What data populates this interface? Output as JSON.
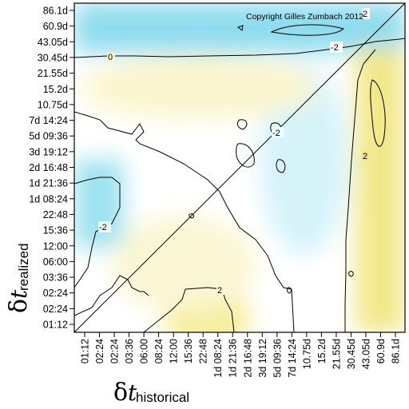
{
  "chart_data": {
    "type": "heatmap",
    "subtype": "contour",
    "title": "",
    "annotation": "Copyright Gilles Zumbach 2012",
    "xlabel": {
      "symbol": "δ",
      "variable": "t",
      "subscript": "historical"
    },
    "ylabel": {
      "symbol": "δ",
      "variable": "t",
      "subscript": "realized"
    },
    "x_ticks": [
      "01:12",
      "02:24",
      "02:24",
      "03:36",
      "06:00",
      "08:24",
      "12:00",
      "15:36",
      "22:48",
      "1d 08:24",
      "1d 21:36",
      "2d 16:48",
      "3d 19:12",
      "5d 09:36",
      "7d 14:24",
      "10.75d",
      "15.2d",
      "21.55d",
      "30.45d",
      "43.05d",
      "60.9d",
      "86.1d"
    ],
    "y_ticks": [
      "01:12",
      "02:24",
      "02:24",
      "03:36",
      "06:00",
      "12:00",
      "15:36",
      "22:48",
      "1d 08:24",
      "1d 21:36",
      "2d 16:48",
      "3d 19:12",
      "5d 09:36",
      "7d 14:24",
      "10.75d",
      "15.2d",
      "21.55d",
      "30.45d",
      "43.05d",
      "60.9d",
      "86.1d"
    ],
    "contour_labels": [
      "-2",
      "2",
      "-2",
      "2",
      "2",
      "-2",
      "0"
    ],
    "colors": {
      "low": "#9fe3f0",
      "mid": "#ffffff",
      "high": "#f3ea8e",
      "line": "#000000"
    },
    "diagonal": true,
    "grid": false,
    "legend": "none"
  }
}
